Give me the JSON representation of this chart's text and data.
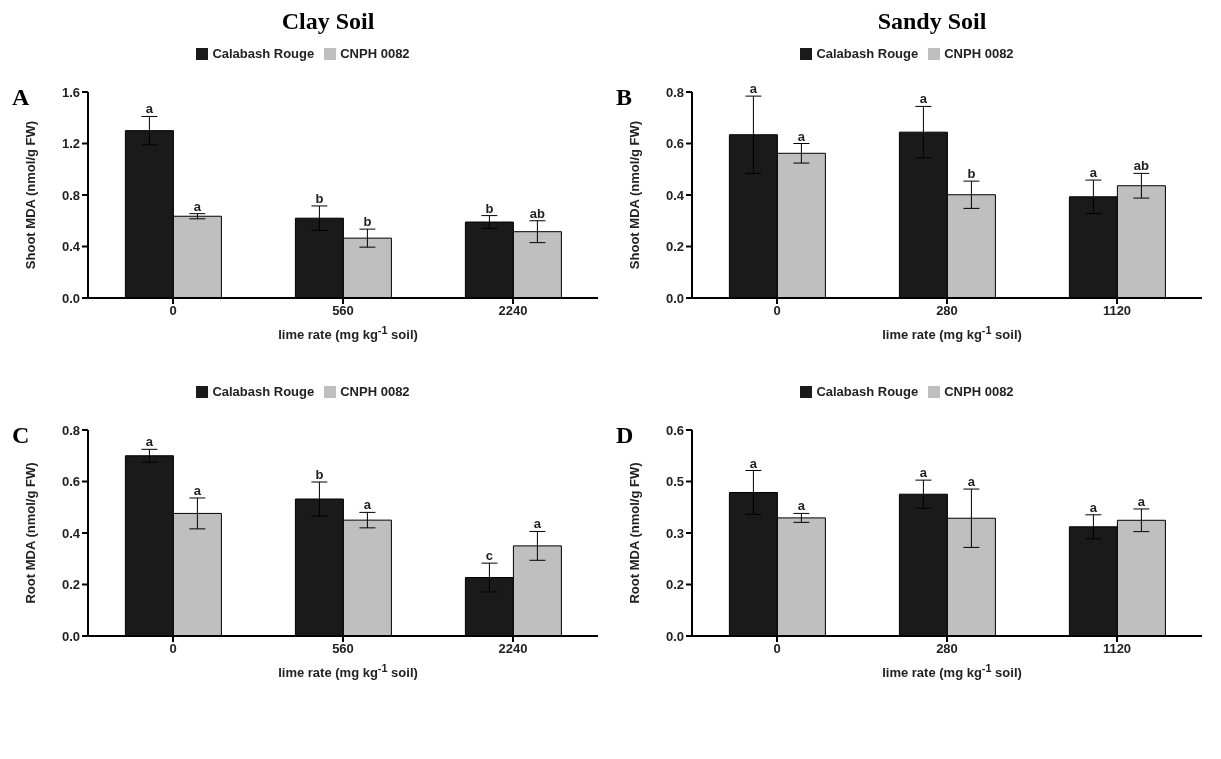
{
  "chart_data": [
    {
      "type": "bar",
      "title": "Clay Soil",
      "annotations": [
        "A"
      ],
      "xlabel": "lime rate (mg kg$^{-1}$ soil)",
      "ylabel": "Shoot MDA (nmol/g FW)",
      "categories": [
        "0",
        "560",
        "2240"
      ],
      "legend": "top",
      "ylim": [
        0,
        1.6
      ],
      "yticks": [
        {
          "value": 0,
          "label": "0.0"
        },
        {
          "value": 0.4,
          "label": "0.4"
        },
        {
          "value": 0.8,
          "label": "0.8"
        },
        {
          "value": 1.2,
          "label": "1.2"
        },
        {
          "value": 1.6,
          "label": "1.6"
        }
      ],
      "series": [
        {
          "name": "Calabash Rouge",
          "color": "#1a1a1a",
          "values": [
            1.3,
            0.62,
            0.59
          ],
          "errors": [
            0.11,
            0.095,
            0.05
          ],
          "value_labels": [
            "a",
            "b",
            "b"
          ]
        },
        {
          "name": "CNPH 0082",
          "color": "#bfbfbf",
          "values": [
            0.635,
            0.465,
            0.515
          ],
          "errors": [
            0.02,
            0.07,
            0.085
          ],
          "value_labels": [
            "a",
            "b",
            "ab"
          ]
        }
      ]
    },
    {
      "type": "bar",
      "title": "Sandy Soil",
      "annotations": [
        "B"
      ],
      "xlabel": "lime rate (mg kg$^{-1}$ soil)",
      "ylabel": "Shoot MDA (nmol/g FW)",
      "categories": [
        "0",
        "280",
        "1120"
      ],
      "legend": "top",
      "ylim": [
        0,
        0.8
      ],
      "yticks": [
        {
          "value": 0,
          "label": "0.0"
        },
        {
          "value": 0.2,
          "label": "0.2"
        },
        {
          "value": 0.4,
          "label": "0.4"
        },
        {
          "value": 0.6,
          "label": "0.6"
        },
        {
          "value": 0.8,
          "label": "0.8"
        }
      ],
      "series": [
        {
          "name": "Calabash Rouge",
          "color": "#1a1a1a",
          "values": [
            0.634,
            0.644,
            0.393
          ],
          "errors": [
            0.15,
            0.1,
            0.065
          ],
          "value_labels": [
            "a",
            "a",
            "a"
          ]
        },
        {
          "name": "CNPH 0082",
          "color": "#bfbfbf",
          "values": [
            0.562,
            0.401,
            0.436
          ],
          "errors": [
            0.038,
            0.053,
            0.048
          ],
          "value_labels": [
            "a",
            "b",
            "ab"
          ]
        }
      ]
    },
    {
      "type": "bar",
      "annotations": [
        "C"
      ],
      "xlabel": "lime rate (mg kg$^{-1}$ soil)",
      "ylabel": "Root MDA (nmol/g FW)",
      "categories": [
        "0",
        "560",
        "2240"
      ],
      "legend": "top",
      "ylim": [
        0,
        0.8
      ],
      "yticks": [
        {
          "value": 0,
          "label": "0.0"
        },
        {
          "value": 0.2,
          "label": "0.2"
        },
        {
          "value": 0.4,
          "label": "0.4"
        },
        {
          "value": 0.6,
          "label": "0.6"
        },
        {
          "value": 0.8,
          "label": "0.8"
        }
      ],
      "series": [
        {
          "name": "Calabash Rouge",
          "color": "#1a1a1a",
          "values": [
            0.7,
            0.532,
            0.227
          ],
          "errors": [
            0.025,
            0.066,
            0.056
          ],
          "value_labels": [
            "a",
            "b",
            "c"
          ]
        },
        {
          "name": "CNPH 0082",
          "color": "#bfbfbf",
          "values": [
            0.476,
            0.45,
            0.35
          ],
          "errors": [
            0.06,
            0.03,
            0.056
          ],
          "value_labels": [
            "a",
            "a",
            "a"
          ]
        }
      ]
    },
    {
      "type": "bar",
      "annotations": [
        "D"
      ],
      "xlabel": "lime rate (mg kg$^{-1}$ soil)",
      "ylabel": "Root MDA (nmol/g FW)",
      "categories": [
        "0",
        "280",
        "1120"
      ],
      "legend": "top",
      "ylim": [
        0,
        0.6
      ],
      "yticks": [
        {
          "value": 0,
          "label": "0.0"
        },
        {
          "value": 0.15,
          "label": "0.2"
        },
        {
          "value": 0.3,
          "label": "0.3"
        },
        {
          "value": 0.45,
          "label": "0.5"
        },
        {
          "value": 0.6,
          "label": "0.6"
        }
      ],
      "series": [
        {
          "name": "Calabash Rouge",
          "color": "#1a1a1a",
          "values": [
            0.418,
            0.413,
            0.318
          ],
          "errors": [
            0.064,
            0.041,
            0.035
          ],
          "value_labels": [
            "a",
            "a",
            "a"
          ]
        },
        {
          "name": "CNPH 0082",
          "color": "#bfbfbf",
          "values": [
            0.344,
            0.343,
            0.337
          ],
          "errors": [
            0.013,
            0.085,
            0.033
          ],
          "value_labels": [
            "a",
            "a",
            "a"
          ]
        }
      ]
    }
  ]
}
